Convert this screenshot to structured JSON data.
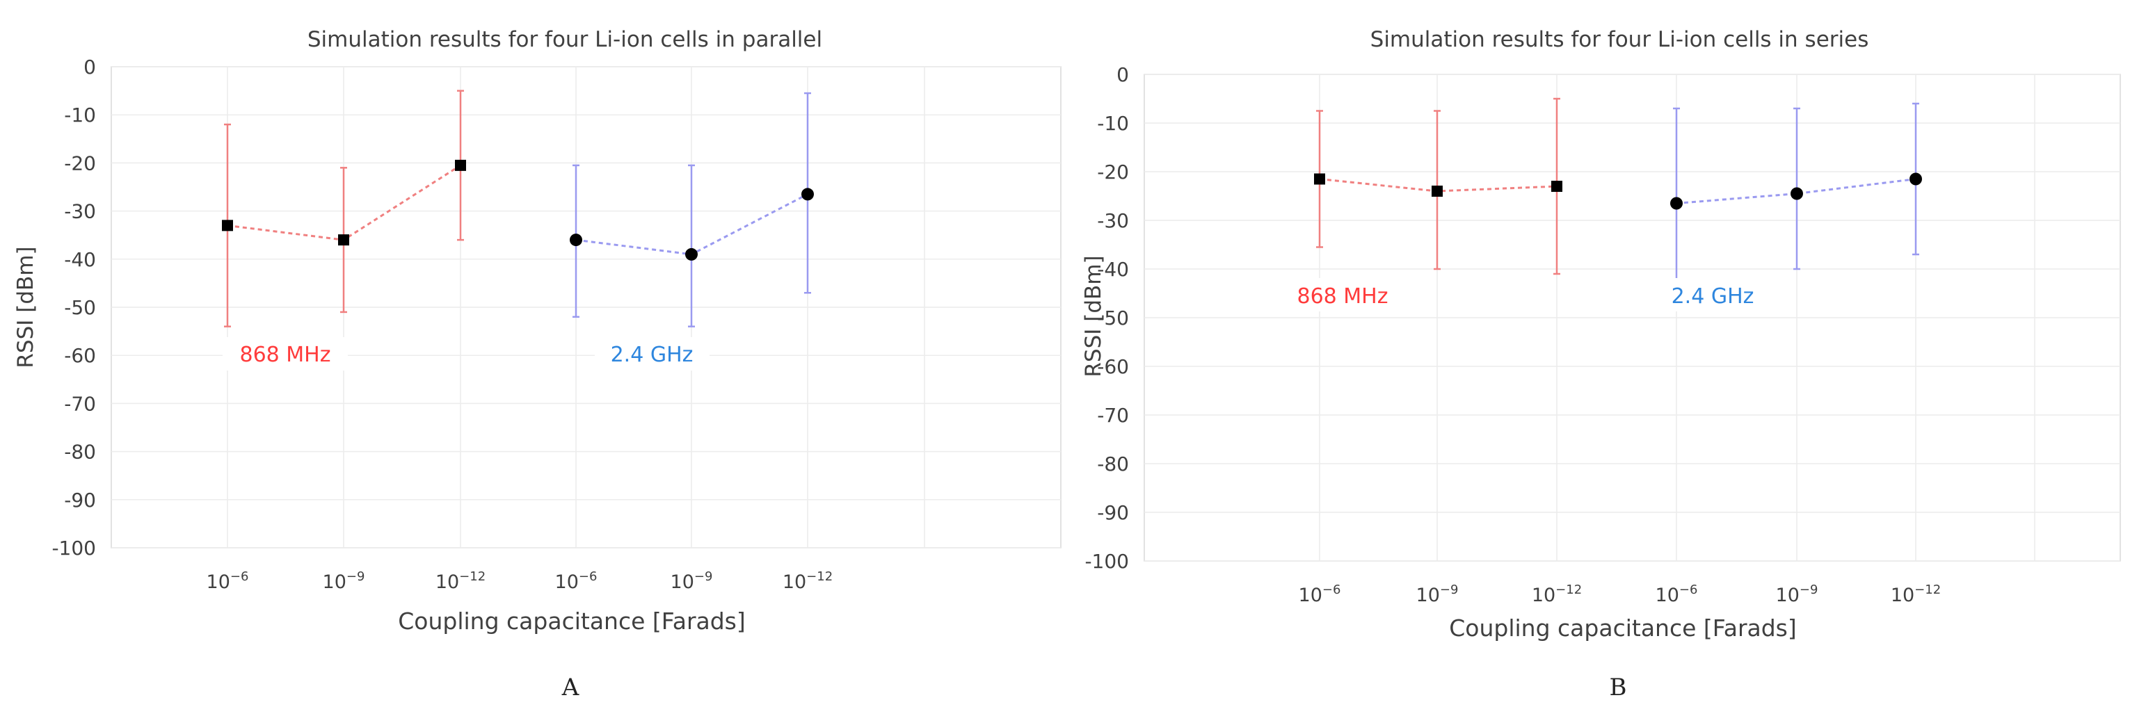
{
  "chart_data": [
    {
      "type": "scatter",
      "title": "Simulation results for four Li-ion cells in parallel",
      "xlabel": "Coupling capacitance [Farads]",
      "ylabel": "RSSI [dBm]",
      "panel_label": "A",
      "ylim": [
        -100,
        0
      ],
      "yticks": [
        "0",
        "-10",
        "-20",
        "-30",
        "-40",
        "-50",
        "-60",
        "-70",
        "-80",
        "-90",
        "-100"
      ],
      "categories": [
        "10-6",
        "10-9",
        "10-12",
        "10-6",
        "10-9",
        "10-12"
      ],
      "grid": true,
      "series": [
        {
          "name": "868 MHz",
          "color": "#f08080",
          "marker": "square",
          "category_index": [
            0,
            1,
            2
          ],
          "values": [
            -33,
            -36,
            -20.5
          ],
          "error_low": [
            -54,
            -51,
            -36
          ],
          "error_high": [
            -12,
            -21,
            -5
          ]
        },
        {
          "name": "2.4 GHz",
          "color": "#9a9af0",
          "marker": "circle",
          "category_index": [
            3,
            4,
            5
          ],
          "values": [
            -36,
            -39,
            -26.5
          ],
          "error_low": [
            -52,
            -54,
            -47
          ],
          "error_high": [
            -20.5,
            -20.5,
            -5.5
          ]
        }
      ],
      "annotations": [
        {
          "text": "868 MHz",
          "color": "#ff3b3b"
        },
        {
          "text": "2.4 GHz",
          "color": "#2e86de"
        }
      ]
    },
    {
      "type": "scatter",
      "title": "Simulation results for four Li-ion cells in series",
      "xlabel": "Coupling capacitance [Farads]",
      "ylabel": "RSSI [dBm]",
      "panel_label": "B",
      "ylim": [
        -100,
        0
      ],
      "yticks": [
        "0",
        "-10",
        "-20",
        "-30",
        "-40",
        "-50",
        "-60",
        "-70",
        "-80",
        "-90",
        "-100"
      ],
      "categories": [
        "10-6",
        "10-9",
        "10-12",
        "10-6",
        "10-9",
        "10-12"
      ],
      "grid": true,
      "series": [
        {
          "name": "868 MHz",
          "color": "#f08080",
          "marker": "square",
          "category_index": [
            0,
            1,
            2
          ],
          "values": [
            -21.5,
            -24,
            -23
          ],
          "error_low": [
            -35.5,
            -40,
            -41
          ],
          "error_high": [
            -7.5,
            -7.5,
            -5
          ]
        },
        {
          "name": "2.4 GHz",
          "color": "#9a9af0",
          "marker": "circle",
          "category_index": [
            3,
            4,
            5
          ],
          "values": [
            -26.5,
            -24.5,
            -21.5
          ],
          "error_low": [
            -46,
            -40,
            -37
          ],
          "error_high": [
            -7,
            -7,
            -6
          ]
        }
      ],
      "annotations": [
        {
          "text": "868 MHz",
          "color": "#ff3b3b"
        },
        {
          "text": "2.4 GHz",
          "color": "#2e86de"
        }
      ]
    }
  ]
}
